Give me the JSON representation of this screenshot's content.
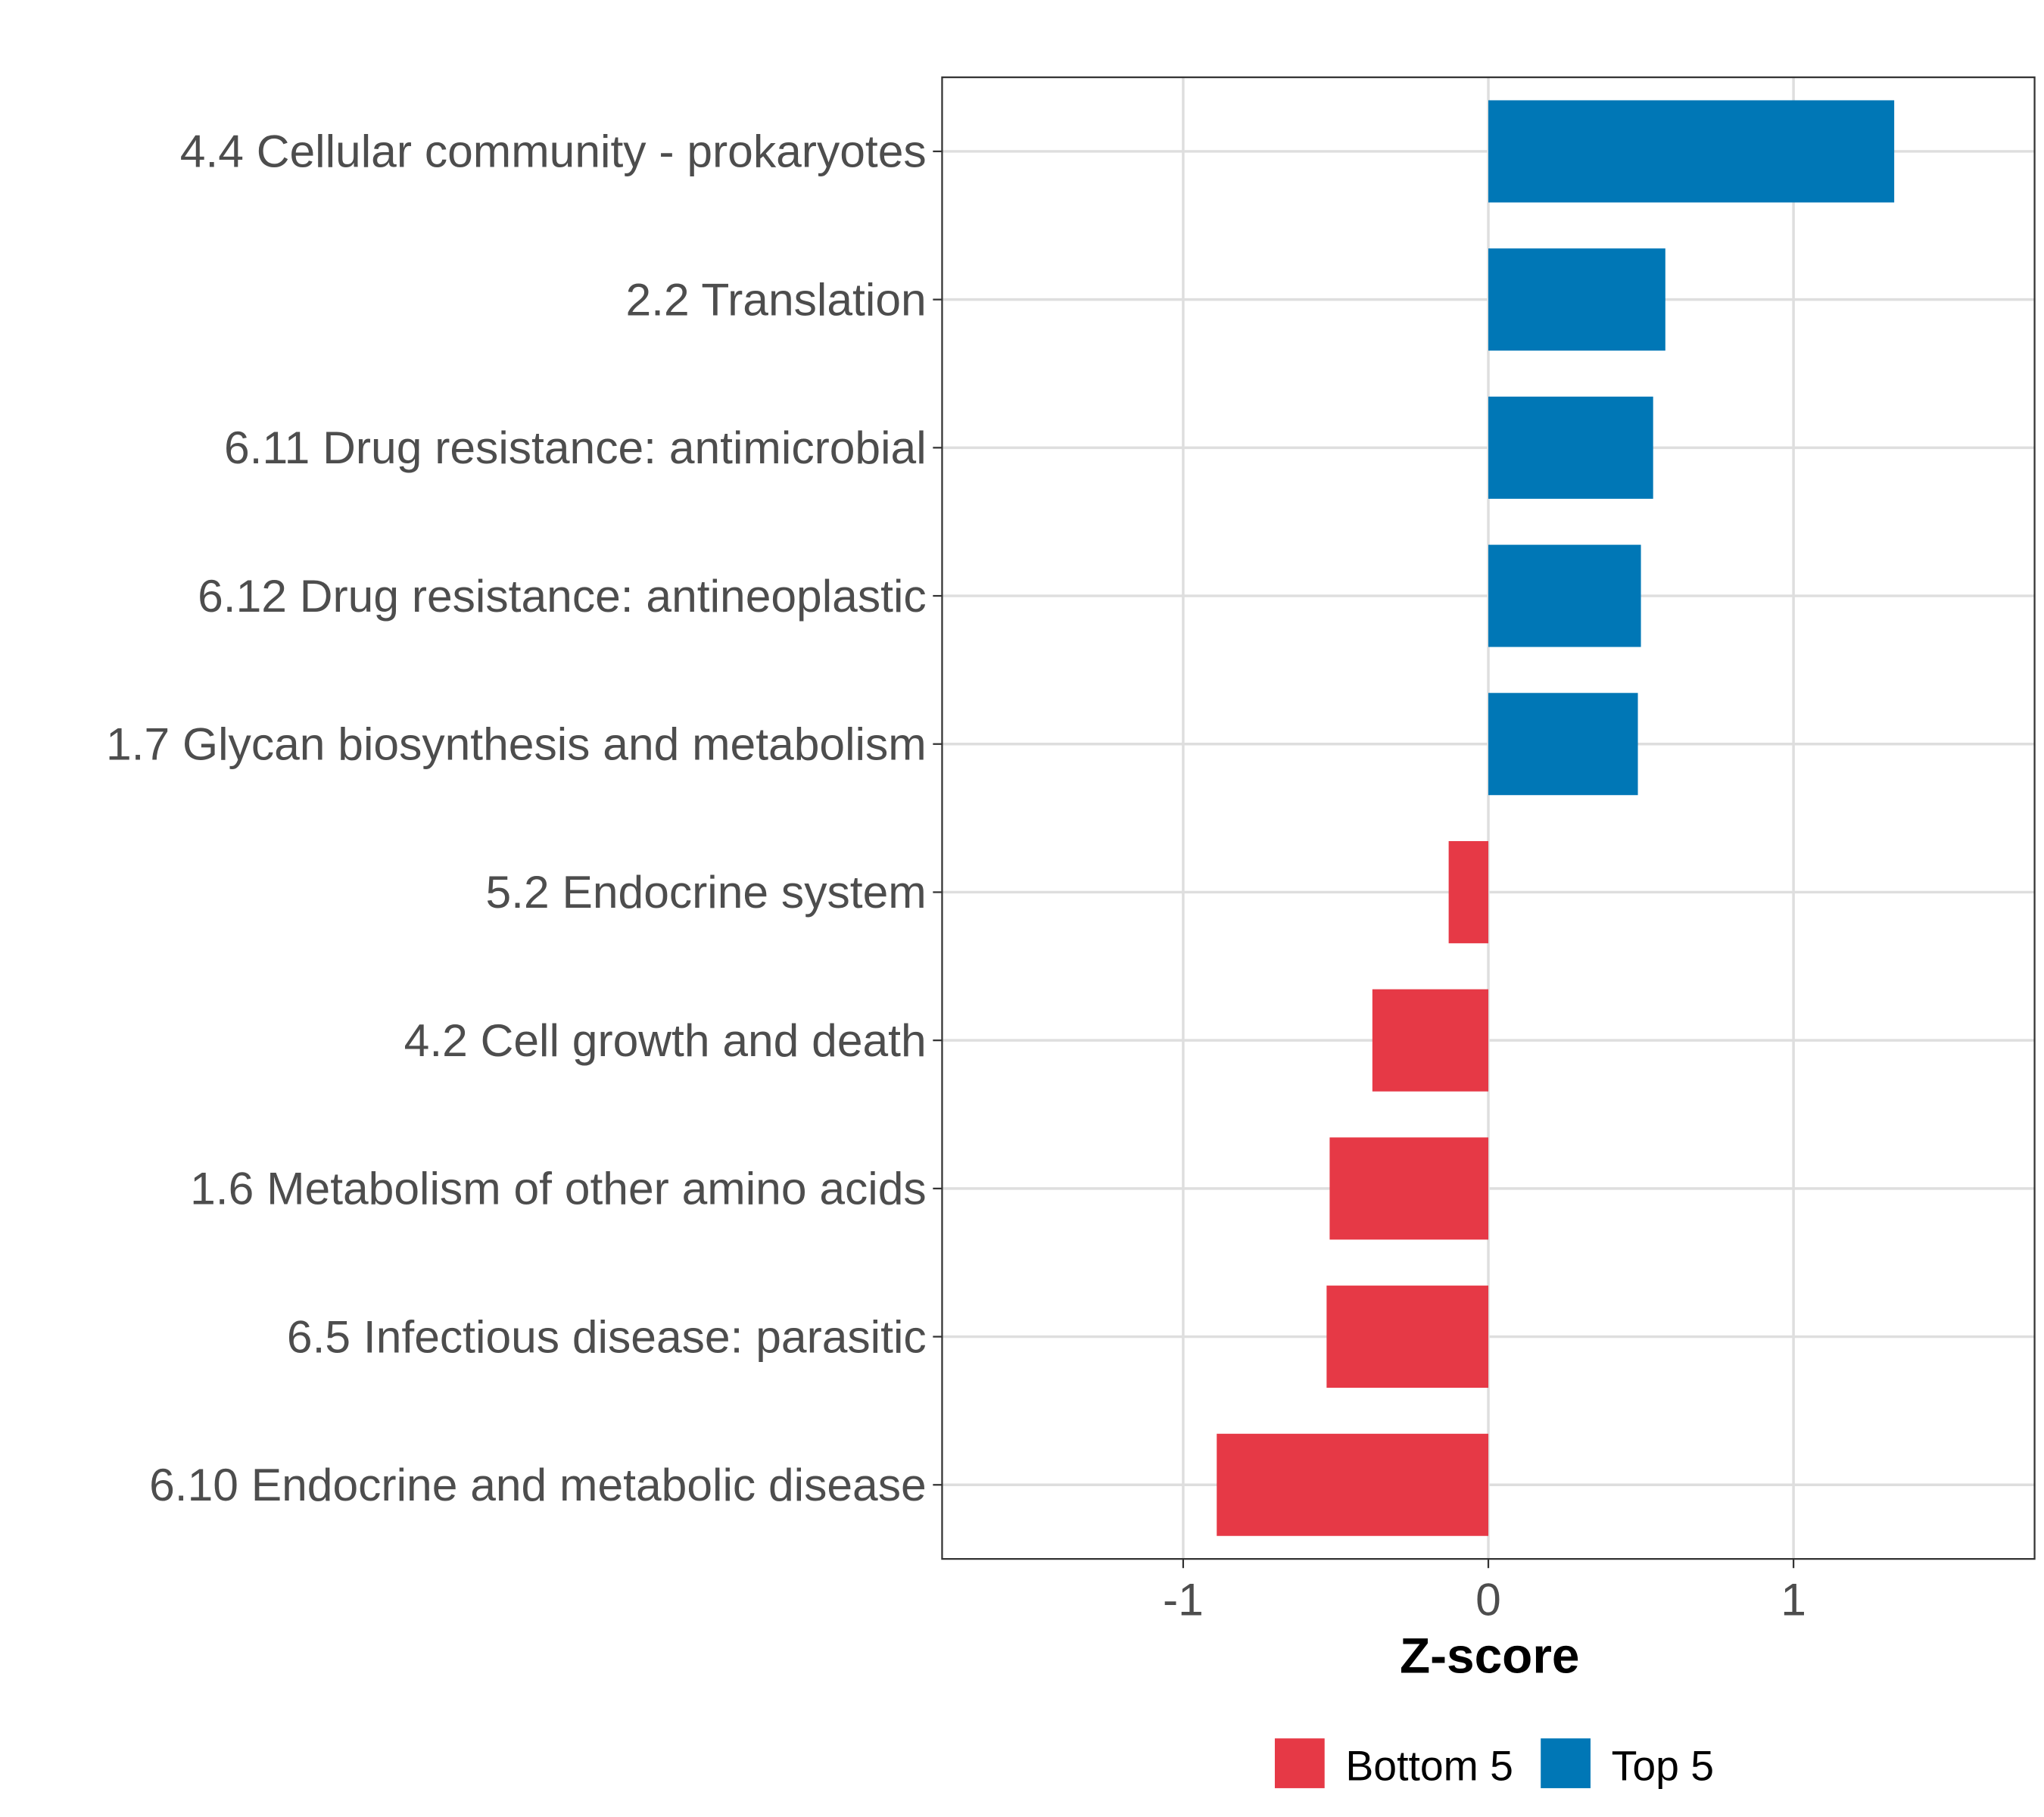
{
  "chart_data": {
    "type": "bar",
    "orientation": "horizontal",
    "title": "",
    "xlabel": "Z-score",
    "ylabel": "",
    "xlim": [
      -1.79,
      1.79
    ],
    "xticks": [
      -1,
      0,
      1
    ],
    "xtick_labels": [
      "-1",
      "0",
      "1"
    ],
    "grid": true,
    "categories": [
      "4.4 Cellular community - prokaryotes",
      "2.2 Translation",
      "6.11 Drug resistance: antimicrobial",
      "6.12 Drug resistance: antineoplastic",
      "1.7 Glycan biosynthesis and metabolism",
      "5.2 Endocrine system",
      "4.2 Cell growth and death",
      "1.6 Metabolism of other amino acids",
      "6.5 Infectious disease: parasitic",
      "6.10 Endocrine and metabolic disease"
    ],
    "values": [
      1.33,
      0.58,
      0.54,
      0.5,
      0.49,
      -0.13,
      -0.38,
      -0.52,
      -0.53,
      -0.89
    ],
    "groups": [
      "Top 5",
      "Top 5",
      "Top 5",
      "Top 5",
      "Top 5",
      "Bottom 5",
      "Bottom 5",
      "Bottom 5",
      "Bottom 5",
      "Bottom 5"
    ],
    "legend": {
      "placement": "bottom",
      "entries": [
        {
          "label": "Bottom 5",
          "color": "#E63946"
        },
        {
          "label": "Top 5",
          "color": "#0077B6"
        }
      ]
    }
  }
}
